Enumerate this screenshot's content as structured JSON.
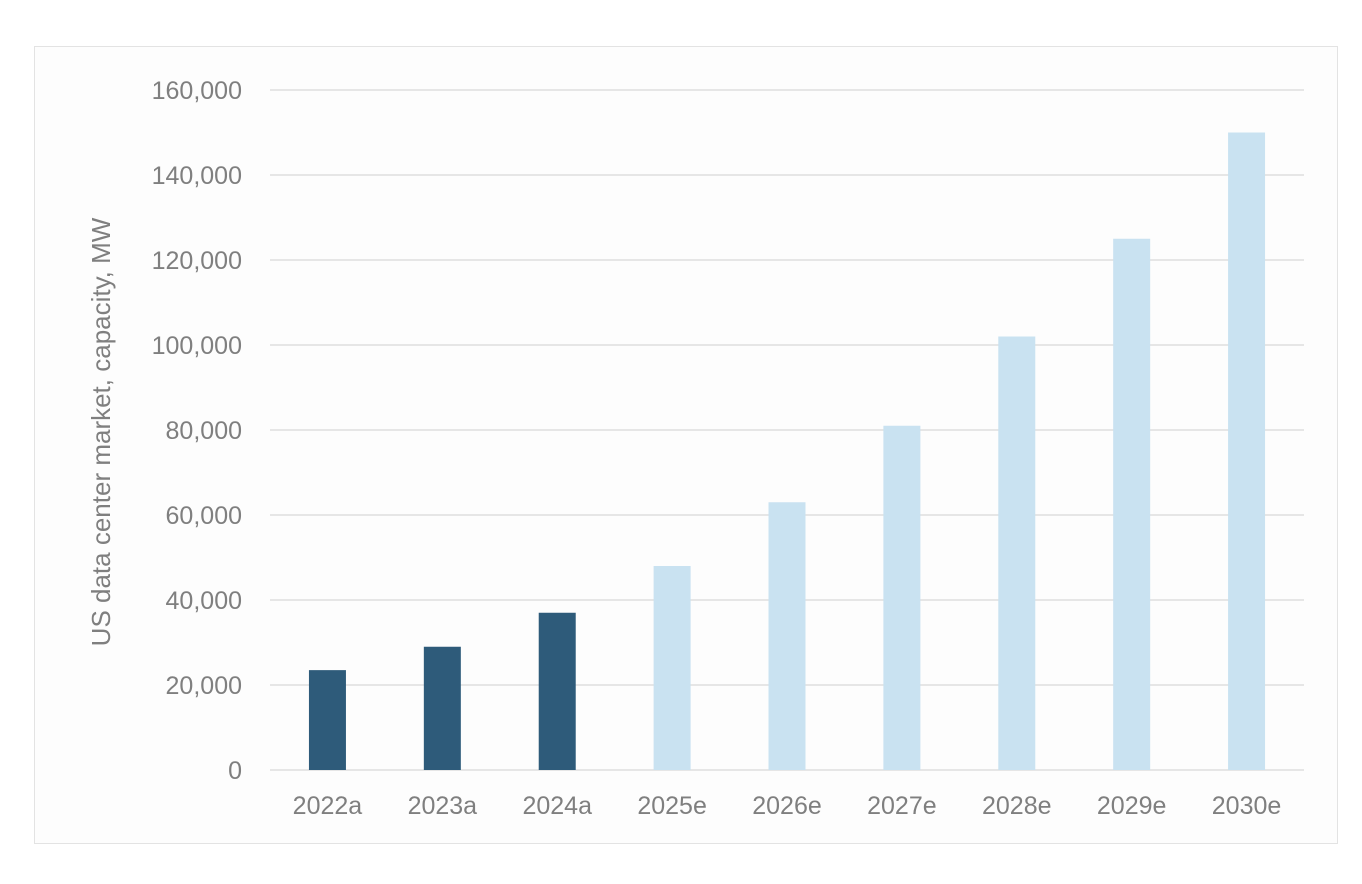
{
  "chart_data": {
    "type": "bar",
    "title": "",
    "xlabel": "",
    "ylabel": "US data center market, capacity, MW",
    "categories": [
      "2022a",
      "2023a",
      "2024a",
      "2025e",
      "2026e",
      "2027e",
      "2028e",
      "2029e",
      "2030e"
    ],
    "values": [
      23500,
      29000,
      37000,
      48000,
      63000,
      81000,
      102000,
      125000,
      150000
    ],
    "ylim": [
      0,
      160000
    ],
    "yticks": [
      0,
      20000,
      40000,
      60000,
      80000,
      100000,
      120000,
      140000,
      160000
    ],
    "ytick_labels": [
      "0",
      "20,000",
      "40,000",
      "60,000",
      "80,000",
      "100,000",
      "120,000",
      "140,000",
      "160,000"
    ],
    "grid": true,
    "legend": "none",
    "colors": {
      "actual": "#2e5b7a",
      "estimate": "#c9e2f1",
      "grid": "#e6e6e6",
      "text": "#7f7f7f"
    }
  }
}
